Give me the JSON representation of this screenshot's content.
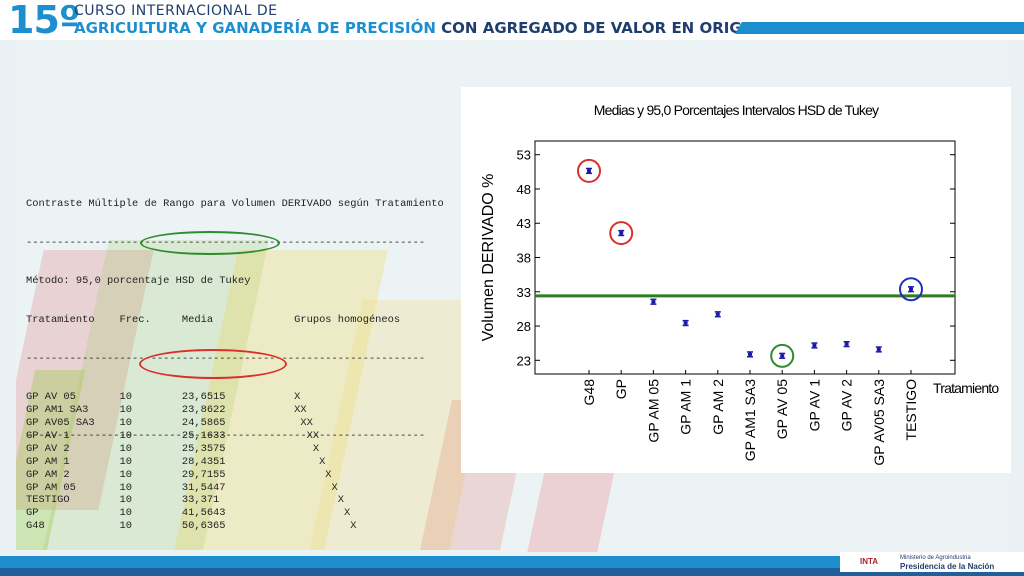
{
  "banner": {
    "number": "15º",
    "line1": "CURSO INTERNACIONAL DE",
    "line2_part1": "AGRICULTURA Y GANADERÍA DE PRECISIÓN",
    "line2_part2": "CON AGREGADO DE VALOR EN ORIGEN",
    "colors": {
      "blue": "#1d8fcf",
      "navy": "#1f3e6d"
    }
  },
  "analysis": {
    "title": "Contraste Múltiple de Rango para Volumen DERIVADO según Tratamiento",
    "separator": "----------------------------------------------------------------",
    "method": "Método: 95,0 porcentaje HSD de Tukey",
    "headers": [
      "Tratamiento",
      "Frec.",
      "Media",
      "Grupos homogéneos"
    ],
    "rows": [
      {
        "treatment": "GP AV 05",
        "freq": "10",
        "mean": "23,6515",
        "groups": "X"
      },
      {
        "treatment": "GP AM1 SA3",
        "freq": "10",
        "mean": "23,8622",
        "groups": "XX"
      },
      {
        "treatment": "GP AV05 SA3",
        "freq": "10",
        "mean": "24,5865",
        "groups": " XX"
      },
      {
        "treatment": "GP AV 1",
        "freq": "10",
        "mean": "25,1633",
        "groups": "  XX"
      },
      {
        "treatment": "GP AV 2",
        "freq": "10",
        "mean": "25,3575",
        "groups": "   X"
      },
      {
        "treatment": "GP AM 1",
        "freq": "10",
        "mean": "28,4351",
        "groups": "    X"
      },
      {
        "treatment": "GP AM 2",
        "freq": "10",
        "mean": "29,7155",
        "groups": "     X"
      },
      {
        "treatment": "GP AM 05",
        "freq": "10",
        "mean": "31,5447",
        "groups": "      X"
      },
      {
        "treatment": "TESTIGO",
        "freq": "10",
        "mean": "33,371",
        "groups": "       X"
      },
      {
        "treatment": "GP",
        "freq": "10",
        "mean": "41,5643",
        "groups": "        X"
      },
      {
        "treatment": "G48",
        "freq": "10",
        "mean": "50,6365",
        "groups": "         X"
      }
    ]
  },
  "chart_data": {
    "type": "scatter",
    "title": "Medias y 95,0 Porcentajes Intervalos HSD de Tukey",
    "xlabel": "Tratamiento",
    "ylabel": "Volumen DERIVADO %",
    "categories": [
      "G48",
      "GP",
      "GP AM 05",
      "GP AM 1",
      "GP AM 2",
      "GP AM1 SA3",
      "GP AV 05",
      "GP AV 1",
      "GP AV 2",
      "GP AV05 SA3",
      "TESTIGO"
    ],
    "values": [
      50.6365,
      41.5643,
      31.5447,
      28.4351,
      29.7155,
      23.8622,
      23.6515,
      25.1633,
      25.3575,
      24.5865,
      33.371
    ],
    "interval_halfwidth": 0.35,
    "ylim": [
      21,
      55
    ],
    "yticks": [
      23,
      28,
      33,
      38,
      43,
      48,
      53
    ],
    "reference_line": 32.4,
    "marker_color": "#1a1aa6",
    "reference_color": "#2e7d1f",
    "highlight_red": [
      "G48",
      "GP"
    ],
    "highlight_green": [
      "GP AV 05"
    ],
    "highlight_blue": [
      "TESTIGO"
    ]
  },
  "footer": {
    "inta": "INTA",
    "ministry": "Ministerio de Agroindustria",
    "presidency": "Presidencia de la Nación"
  }
}
